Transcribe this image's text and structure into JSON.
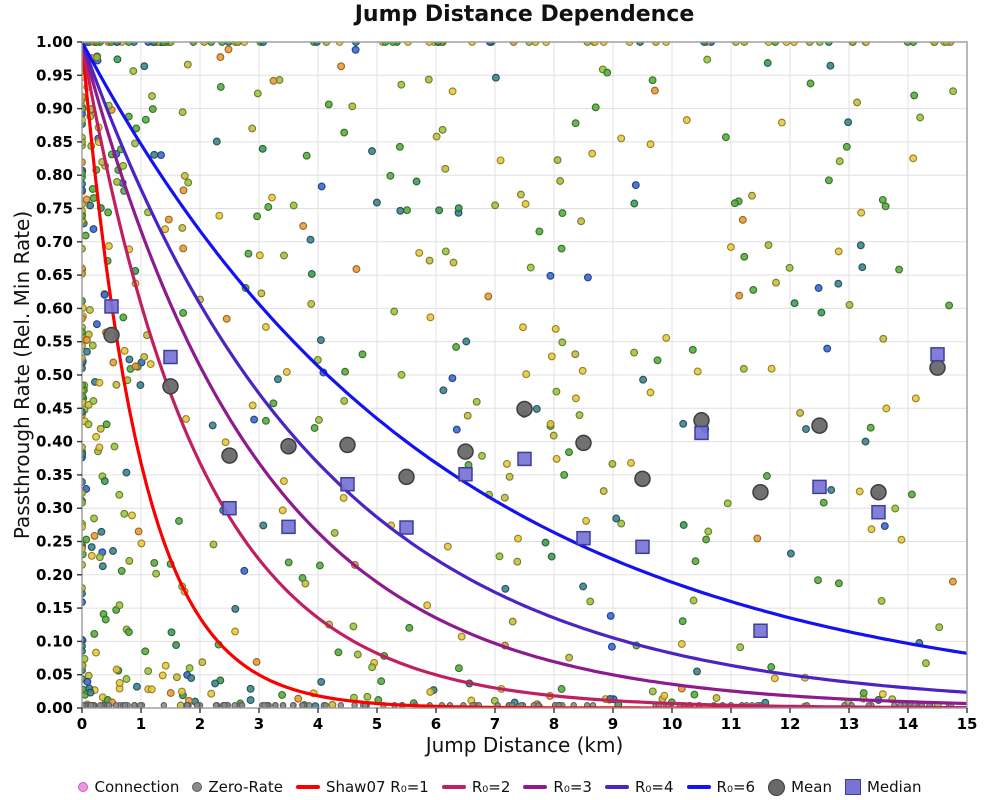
{
  "chart_data": {
    "type": "scatter",
    "title": "Jump Distance Dependence",
    "xlabel": "Jump Distance (km)",
    "ylabel": "Passthrough Rate (Rel. Min Rate)",
    "xlim": [
      0,
      15
    ],
    "ylim": [
      0,
      1
    ],
    "grid": true,
    "xtick_values": [
      0,
      1,
      2,
      3,
      4,
      5,
      6,
      7,
      8,
      9,
      10,
      11,
      12,
      13,
      14,
      15
    ],
    "xtick_labels": [
      "0",
      "1",
      "2",
      "3",
      "4",
      "5",
      "6",
      "7",
      "8",
      "9",
      "10",
      "11",
      "12",
      "13",
      "14",
      "15"
    ],
    "ytick_values": [
      0,
      0.05,
      0.1,
      0.15,
      0.2,
      0.25,
      0.3,
      0.35,
      0.4,
      0.45,
      0.5,
      0.55,
      0.6,
      0.65,
      0.7,
      0.75,
      0.8,
      0.85,
      0.9,
      0.95,
      1.0
    ],
    "ytick_labels": [
      "0.00",
      "0.05",
      "0.10",
      "0.15",
      "0.20",
      "0.25",
      "0.30",
      "0.35",
      "0.40",
      "0.45",
      "0.50",
      "0.55",
      "0.60",
      "0.65",
      "0.70",
      "0.75",
      "0.80",
      "0.85",
      "0.90",
      "0.95",
      "1.00"
    ],
    "curve_formula": "y = exp(-x / R0)",
    "curves": [
      {
        "name": "Shaw07 R₀=1",
        "R0": 1,
        "color": "#fa0000"
      },
      {
        "name": "R₀=2",
        "R0": 2,
        "color": "#c01f60"
      },
      {
        "name": "R₀=3",
        "R0": 3,
        "color": "#8d1b8d"
      },
      {
        "name": "R₀=4",
        "R0": 4,
        "color": "#4b24c4"
      },
      {
        "name": "R₀=6",
        "R0": 6,
        "color": "#1412f2"
      }
    ],
    "bins": {
      "centers": [
        0.5,
        1.5,
        2.5,
        3.5,
        4.5,
        5.5,
        6.5,
        7.5,
        8.5,
        9.5,
        10.5,
        11.5,
        12.5,
        13.5,
        14.5
      ],
      "mean": {
        "name": "Mean",
        "fill": "#696969",
        "edge": "#3d3d3d",
        "values": [
          0.56,
          0.483,
          0.379,
          0.393,
          0.395,
          0.347,
          0.385,
          0.449,
          0.398,
          0.344,
          0.432,
          0.324,
          0.424,
          0.324,
          0.511
        ]
      },
      "median": {
        "name": "Median",
        "fill": "#7674d4",
        "edge": "#3d3da0",
        "values": [
          0.603,
          0.527,
          0.3,
          0.272,
          0.336,
          0.271,
          0.351,
          0.374,
          0.255,
          0.242,
          0.413,
          0.116,
          0.332,
          0.294,
          0.531
        ]
      }
    },
    "scatter": {
      "seed": 20,
      "palette": [
        {
          "name": "yellow",
          "fill": "#e6c73e",
          "edge": "#8f7a1e",
          "w": 0.2
        },
        {
          "name": "olive",
          "fill": "#c2bd42",
          "edge": "#77741f",
          "w": 0.1
        },
        {
          "name": "yellow-green",
          "fill": "#9dc13f",
          "edge": "#5f7a20",
          "w": 0.16
        },
        {
          "name": "green",
          "fill": "#56a83d",
          "edge": "#2f6b22",
          "w": 0.2
        },
        {
          "name": "dark-green",
          "fill": "#3b9a52",
          "edge": "#1f5e30",
          "w": 0.06
        },
        {
          "name": "teal",
          "fill": "#3a8089",
          "edge": "#1f4d55",
          "w": 0.14
        },
        {
          "name": "blue",
          "fill": "#3566cc",
          "edge": "#1c3c85",
          "w": 0.06
        },
        {
          "name": "orange",
          "fill": "#e69a35",
          "edge": "#96601a",
          "w": 0.08
        }
      ],
      "zero_rate_color": {
        "fill": "#8c8c8c",
        "edge": "#5a5a5a"
      },
      "groups": [
        {
          "name": "left-strip",
          "n": 150,
          "x_scale": 1.1,
          "x_pow": 2.2,
          "x_zero_frac": 0.35,
          "y_min": 0.0,
          "y_max": 1.0,
          "palette": "connection"
        },
        {
          "name": "top-row",
          "n": 95,
          "x_scale": 15,
          "x_pow": 1.6,
          "y_const": 1.0,
          "palette": "connection"
        },
        {
          "name": "body",
          "n": 380,
          "x_scale": 15,
          "x_pow": 1.35,
          "y_min": 0.01,
          "y_max": 0.99,
          "palette": "connection"
        },
        {
          "name": "bottom-strip",
          "n": 55,
          "x_scale": 15,
          "x_pow": 1.5,
          "y_min": 0.002,
          "y_max": 0.03,
          "palette": "connection"
        },
        {
          "name": "zero-rate-row",
          "n": 135,
          "x_scale": 15,
          "x_pow": 1.45,
          "y_const": 0.004,
          "palette": "zero"
        }
      ]
    },
    "colors": {
      "grid": "#e0e0e0",
      "frame": "#9a9a9a",
      "tick": "#333333",
      "text": "#000000",
      "background": "#ffffff"
    }
  },
  "legend": {
    "items": [
      {
        "label": "Connection",
        "marker": "dot",
        "color": "#f095e0",
        "edge": "#c45fb4"
      },
      {
        "label": "Zero-Rate",
        "marker": "dot",
        "color": "#8c8c8c",
        "edge": "#5a5a5a"
      },
      {
        "label": "Shaw07 R₀=1",
        "marker": "line",
        "color": "#fa0000"
      },
      {
        "label": "R₀=2",
        "marker": "line",
        "color": "#c01f60"
      },
      {
        "label": "R₀=3",
        "marker": "line",
        "color": "#8d1b8d"
      },
      {
        "label": "R₀=4",
        "marker": "line",
        "color": "#4b24c4"
      },
      {
        "label": "R₀=6",
        "marker": "line",
        "color": "#1412f2"
      },
      {
        "label": "Mean",
        "marker": "circle",
        "color": "#696969",
        "edge": "#3d3d3d"
      },
      {
        "label": "Median",
        "marker": "square",
        "color": "#7674d4",
        "edge": "#3d3da0"
      }
    ]
  }
}
